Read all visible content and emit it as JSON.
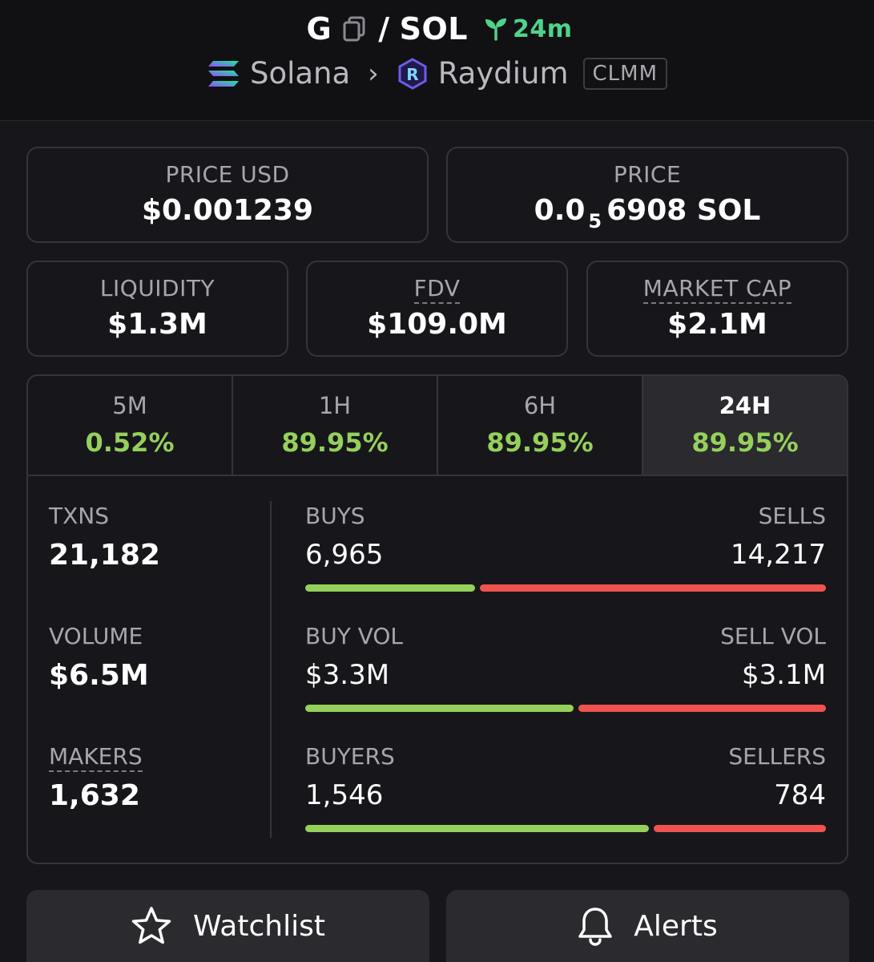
{
  "header": {
    "base_symbol": "G",
    "separator": "/",
    "quote_symbol": "SOL",
    "age": "24m",
    "chain": "Solana",
    "dex": "Raydium",
    "pool_type": "CLMM"
  },
  "price_usd": {
    "label": "PRICE USD",
    "value": "$0.001239"
  },
  "price_native": {
    "label": "PRICE",
    "prefix": "0.0",
    "zeros_sub": "5",
    "digits": "6908",
    "unit": "SOL"
  },
  "liquidity": {
    "label": "LIQUIDITY",
    "value": "$1.3M"
  },
  "fdv": {
    "label": "FDV",
    "value": "$109.0M"
  },
  "market_cap": {
    "label": "MARKET CAP",
    "value": "$2.1M"
  },
  "timeframes": [
    {
      "label": "5M",
      "change": "0.52%"
    },
    {
      "label": "1H",
      "change": "89.95%"
    },
    {
      "label": "6H",
      "change": "89.95%"
    },
    {
      "label": "24H",
      "change": "89.95%"
    }
  ],
  "selected_timeframe": "24H",
  "metrics": {
    "txns": {
      "label": "TXNS",
      "value": "21,182"
    },
    "volume": {
      "label": "VOLUME",
      "value": "$6.5M"
    },
    "makers": {
      "label": "MAKERS",
      "value": "1,632"
    }
  },
  "breakdown": {
    "buys": {
      "left_label": "BUYS",
      "left_value": "6,965",
      "right_label": "SELLS",
      "right_value": "14,217",
      "buy_fraction": 0.33
    },
    "volume": {
      "left_label": "BUY VOL",
      "left_value": "$3.3M",
      "right_label": "SELL VOL",
      "right_value": "$3.1M",
      "buy_fraction": 0.52
    },
    "buyers": {
      "left_label": "BUYERS",
      "left_value": "1,546",
      "right_label": "SELLERS",
      "right_value": "784",
      "buy_fraction": 0.665
    }
  },
  "actions": {
    "watchlist": "Watchlist",
    "alerts": "Alerts"
  },
  "colors": {
    "positive": "#95d05b",
    "negative": "#ef5350",
    "age": "#4fd38a"
  }
}
